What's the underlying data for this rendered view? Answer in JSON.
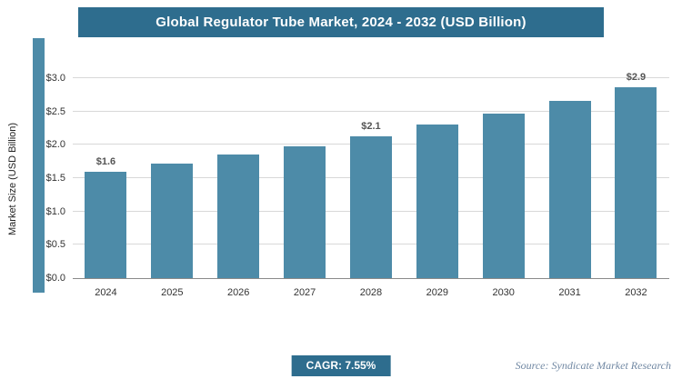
{
  "title": "Global Regulator Tube Market, 2024 - 2032 (USD Billion)",
  "chart_data": {
    "type": "bar",
    "title": "Global Regulator Tube Market, 2024 - 2032 (USD Billion)",
    "categories": [
      "2024",
      "2025",
      "2026",
      "2027",
      "2028",
      "2029",
      "2030",
      "2031",
      "2032"
    ],
    "values": [
      1.6,
      1.72,
      1.85,
      1.98,
      2.13,
      2.3,
      2.47,
      2.66,
      2.86
    ],
    "bar_labels": [
      "$1.6",
      "",
      "",
      "",
      "$2.1",
      "",
      "",
      "",
      "$2.9"
    ],
    "xlabel": "",
    "ylabel": "Market Size (USD Billion)",
    "ylim": [
      0,
      3.0
    ],
    "ytick_step": 0.5,
    "yticks": [
      "$0.0",
      "$0.5",
      "$1.0",
      "$1.5",
      "$2.0",
      "$2.5",
      "$3.0"
    ],
    "grid": "horizontal",
    "legend": "none"
  },
  "footer": {
    "cagr_label": "CAGR: 7.55%",
    "source": "Source: Syndicate Market Research"
  },
  "colors": {
    "banner": "#2e6d8e",
    "bar": "#4d8ba8",
    "accent_strip": "#4d8ba8",
    "badge": "#2e6d8e",
    "gridline": "#d8d8d8",
    "axis": "#8a8a8a",
    "source_text": "#7188a3"
  }
}
